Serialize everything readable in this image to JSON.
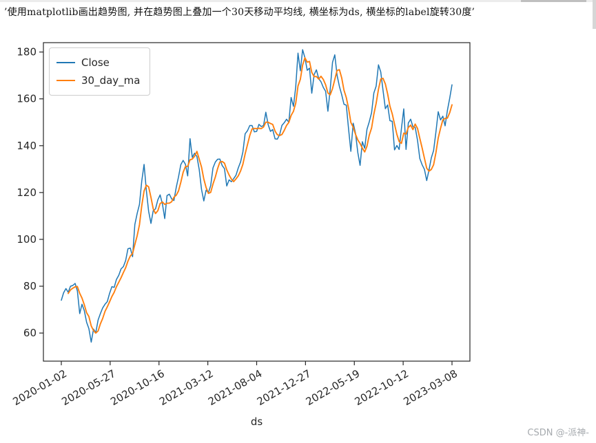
{
  "page": {
    "caption": "’使用matplotlib画出趋势图, 并在趋势图上叠加一个30天移动平均线, 横坐标为ds, 横坐标的label旋转30度’",
    "watermark": "CSDN @-派神-"
  },
  "chart_data": {
    "type": "line",
    "title": "",
    "xlabel": "ds",
    "ylabel": "",
    "x_start": "2020-01-02",
    "x_end": "2023-03-08",
    "sampling": "approximately weekly close prices",
    "ylim": [
      48,
      184
    ],
    "y_ticks": [
      60,
      80,
      100,
      120,
      140,
      160,
      180
    ],
    "x_tick_labels": [
      "2020-01-02",
      "2020-05-27",
      "2020-10-16",
      "2021-03-12",
      "2021-08-04",
      "2021-12-27",
      "2022-05-19",
      "2022-10-12",
      "2023-03-08"
    ],
    "x_tick_rotation_deg": 30,
    "grid": false,
    "legend_position": "upper left",
    "series": [
      {
        "name": "Close",
        "color": "#1f77b4",
        "values": [
          74.0,
          77.2,
          79.0,
          77.4,
          80.0,
          80.3,
          81.2,
          78.0,
          68.3,
          72.3,
          69.5,
          64.6,
          61.9,
          56.1,
          61.7,
          60.2,
          65.6,
          68.3,
          70.7,
          72.3,
          73.4,
          76.9,
          79.8,
          79.5,
          82.9,
          84.7,
          87.4,
          88.4,
          91.0,
          96.0,
          96.3,
          92.6,
          106.3,
          111.1,
          114.9,
          124.8,
          132.0,
          120.9,
          112.0,
          106.8,
          112.3,
          113.0,
          116.9,
          119.0,
          115.0,
          108.9,
          118.7,
          119.3,
          117.3,
          116.6,
          122.2,
          126.7,
          131.9,
          133.7,
          132.1,
          127.1,
          143.0,
          135.0,
          136.8,
          135.4,
          129.9,
          121.3,
          116.4,
          121.0,
          119.9,
          123.0,
          130.5,
          133.0,
          134.2,
          134.3,
          131.5,
          130.2,
          122.8,
          125.4,
          124.6,
          125.9,
          127.4,
          130.5,
          133.1,
          137.3,
          145.1,
          146.4,
          148.6,
          148.6,
          145.9,
          146.1,
          149.1,
          148.2,
          148.6,
          154.3,
          149.0,
          146.1,
          146.9,
          142.9,
          142.8,
          144.8,
          148.7,
          149.8,
          151.3,
          150.0,
          160.6,
          156.8,
          165.1,
          179.5,
          172.0,
          181.0,
          177.6,
          172.2,
          173.1,
          162.4,
          170.3,
          172.4,
          168.6,
          167.3,
          164.9,
          163.2,
          154.7,
          164.0,
          175.6,
          178.8,
          170.1,
          165.3,
          161.8,
          157.7,
          157.3,
          147.1,
          137.6,
          149.6,
          145.4,
          137.1,
          131.6,
          141.7,
          138.9,
          147.0,
          150.2,
          154.1,
          162.5,
          165.4,
          174.5,
          171.5,
          163.6,
          155.8,
          157.4,
          150.7,
          150.4,
          138.2,
          140.1,
          138.4,
          147.3,
          155.7,
          138.4,
          149.7,
          151.3,
          148.1,
          147.8,
          142.2,
          134.5,
          131.9,
          129.9,
          125.1,
          129.6,
          134.8,
          137.9,
          145.9,
          154.5,
          151.0,
          152.6,
          148.5,
          155.0,
          160.3,
          166.0
        ]
      },
      {
        "name": "30_day_ma",
        "color": "#ff7f0e",
        "derived_from": "Close",
        "window_days": 30,
        "window_points": 4
      }
    ]
  }
}
